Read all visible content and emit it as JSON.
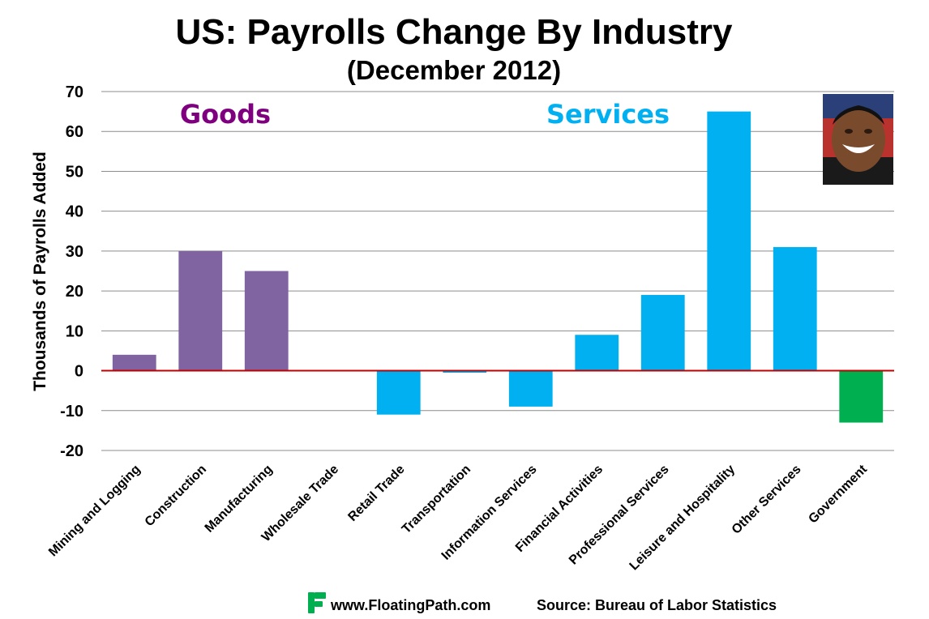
{
  "chart_data": {
    "type": "bar",
    "title": "US: Payrolls Change By Industry",
    "subtitle": "(December 2012)",
    "xlabel": "",
    "ylabel": "Thousands of Payrolls Added",
    "ylim": [
      -20,
      70
    ],
    "yticks": [
      70,
      60,
      50,
      40,
      30,
      20,
      10,
      0,
      -10,
      -20
    ],
    "grid": true,
    "categories": [
      "Mining and Logging",
      "Construction",
      "Manufacturing",
      "Wholesale Trade",
      "Retail Trade",
      "Transportation",
      "Information Services",
      "Financial Activities",
      "Professional Services",
      "Leisure and Hospitality",
      "Other Services",
      "Government"
    ],
    "values": [
      4,
      30,
      25,
      0,
      -11,
      -0.5,
      -9,
      9,
      19,
      65,
      31,
      -13
    ],
    "bar_colors": [
      "#8064a2",
      "#8064a2",
      "#8064a2",
      "#8064a2",
      "#00b0f0",
      "#00b0f0",
      "#00b0f0",
      "#00b0f0",
      "#00b0f0",
      "#00b0f0",
      "#00b0f0",
      "#00b050"
    ],
    "zero_line_color": "#c00000",
    "annotations": [
      {
        "text": "Goods",
        "color": "#7f007f"
      },
      {
        "text": "Services",
        "color": "#00b0f0"
      }
    ]
  },
  "footer": {
    "website": "www.FloatingPath.com",
    "source": "Source: Bureau of Labor Statistics",
    "logo_color": "#00b050"
  },
  "photo": {
    "icon": "portrait-photo"
  }
}
